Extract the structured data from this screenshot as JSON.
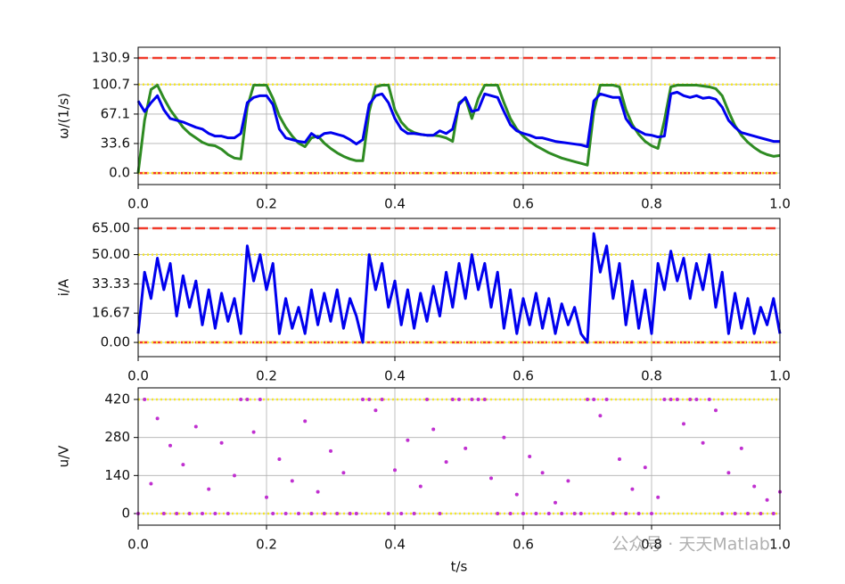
{
  "chart_data": [
    {
      "type": "line",
      "ylabel": "ω/(1/s)",
      "xlim": [
        0,
        1
      ],
      "xticks": [
        {
          "value": 0,
          "label": "0.0"
        },
        0.2,
        0.4,
        0.6,
        0.8,
        {
          "value": 1,
          "label": "1.0"
        }
      ],
      "ylim": [
        -13.1,
        143.1
      ],
      "yticks": [
        {
          "value": 0,
          "label": "0.0"
        },
        33.6,
        67.1,
        100.7,
        130.9
      ],
      "grid": true,
      "hlines": [
        {
          "value": 130.9,
          "color": "#f03a2a",
          "style": "dashed"
        },
        {
          "value": 100.7,
          "color": "#f5e72a",
          "style": "dotted"
        },
        {
          "value": 0,
          "color": "#f03a2a",
          "style": "dashed"
        },
        {
          "value": 0,
          "color": "#f5e72a",
          "style": "dotted"
        }
      ],
      "x": [
        0,
        0.01,
        0.02,
        0.03,
        0.04,
        0.05,
        0.06,
        0.07,
        0.08,
        0.09,
        0.1,
        0.11,
        0.12,
        0.13,
        0.14,
        0.15,
        0.16,
        0.17,
        0.18,
        0.19,
        0.2,
        0.21,
        0.22,
        0.23,
        0.24,
        0.25,
        0.26,
        0.27,
        0.28,
        0.29,
        0.3,
        0.31,
        0.32,
        0.33,
        0.34,
        0.35,
        0.36,
        0.37,
        0.38,
        0.39,
        0.4,
        0.41,
        0.42,
        0.43,
        0.44,
        0.45,
        0.46,
        0.47,
        0.48,
        0.49,
        0.5,
        0.51,
        0.52,
        0.53,
        0.54,
        0.55,
        0.56,
        0.57,
        0.58,
        0.59,
        0.6,
        0.61,
        0.62,
        0.63,
        0.64,
        0.65,
        0.66,
        0.67,
        0.68,
        0.69,
        0.7,
        0.71,
        0.72,
        0.73,
        0.74,
        0.75,
        0.76,
        0.77,
        0.78,
        0.79,
        0.8,
        0.81,
        0.82,
        0.83,
        0.84,
        0.85,
        0.86,
        0.87,
        0.88,
        0.89,
        0.9,
        0.91,
        0.92,
        0.93,
        0.94,
        0.95,
        0.96,
        0.97,
        0.98,
        0.99,
        1
      ],
      "series": [
        {
          "color": "#2e8b22",
          "values": [
            0,
            60,
            95,
            100,
            85,
            72,
            62,
            52,
            45,
            40,
            35,
            32,
            31,
            27,
            21,
            17,
            16,
            75,
            100,
            100,
            100,
            85,
            65,
            52,
            42,
            34,
            30,
            40,
            42,
            34,
            28,
            23,
            19,
            16,
            14,
            14,
            70,
            98,
            100,
            100,
            72,
            58,
            50,
            46,
            44,
            43,
            43,
            42,
            40,
            36,
            80,
            85,
            62,
            85,
            100,
            100,
            100,
            80,
            62,
            50,
            42,
            36,
            31,
            27,
            23,
            20,
            17,
            15,
            13,
            11,
            9,
            70,
            100,
            100,
            100,
            98,
            72,
            55,
            44,
            36,
            31,
            28,
            60,
            98,
            100,
            100,
            100,
            100,
            99,
            98,
            96,
            88,
            70,
            54,
            43,
            35,
            29,
            24,
            21,
            19,
            20
          ]
        },
        {
          "color": "#0000ee",
          "values": [
            82,
            70,
            80,
            88,
            72,
            62,
            60,
            58,
            55,
            52,
            50,
            45,
            42,
            42,
            40,
            40,
            45,
            80,
            86,
            88,
            88,
            78,
            50,
            40,
            38,
            36,
            35,
            45,
            40,
            45,
            46,
            44,
            42,
            38,
            33,
            38,
            78,
            88,
            90,
            80,
            62,
            50,
            45,
            45,
            44,
            43,
            43,
            48,
            45,
            50,
            78,
            86,
            70,
            72,
            90,
            88,
            86,
            70,
            55,
            48,
            45,
            43,
            40,
            40,
            38,
            36,
            35,
            34,
            33,
            32,
            30,
            82,
            90,
            88,
            86,
            86,
            62,
            52,
            48,
            44,
            43,
            41,
            42,
            90,
            92,
            88,
            86,
            88,
            85,
            86,
            84,
            75,
            60,
            52,
            46,
            44,
            42,
            40,
            38,
            36,
            36
          ]
        }
      ]
    },
    {
      "type": "line",
      "ylabel": "i/A",
      "xlim": [
        0,
        1
      ],
      "xticks": [
        {
          "value": 0,
          "label": "0.0"
        },
        0.2,
        0.4,
        0.6,
        0.8,
        {
          "value": 1,
          "label": "1.0"
        }
      ],
      "ylim": [
        -8.1,
        70.6
      ],
      "yticks": [
        {
          "value": 0,
          "label": "0.00"
        },
        16.67,
        33.33,
        {
          "value": 50,
          "label": "50.00"
        },
        {
          "value": 65,
          "label": "65.00"
        }
      ],
      "grid": true,
      "hlines": [
        {
          "value": 65,
          "color": "#f03a2a",
          "style": "dashed"
        },
        {
          "value": 50,
          "color": "#f5e72a",
          "style": "dotted"
        },
        {
          "value": 0,
          "color": "#f03a2a",
          "style": "dashed"
        },
        {
          "value": 0,
          "color": "#f5e72a",
          "style": "dotted"
        }
      ],
      "x": [
        0,
        0.01,
        0.02,
        0.03,
        0.04,
        0.05,
        0.06,
        0.07,
        0.08,
        0.09,
        0.1,
        0.11,
        0.12,
        0.13,
        0.14,
        0.15,
        0.16,
        0.17,
        0.18,
        0.19,
        0.2,
        0.21,
        0.22,
        0.23,
        0.24,
        0.25,
        0.26,
        0.27,
        0.28,
        0.29,
        0.3,
        0.31,
        0.32,
        0.33,
        0.34,
        0.35,
        0.36,
        0.37,
        0.38,
        0.39,
        0.4,
        0.41,
        0.42,
        0.43,
        0.44,
        0.45,
        0.46,
        0.47,
        0.48,
        0.49,
        0.5,
        0.51,
        0.52,
        0.53,
        0.54,
        0.55,
        0.56,
        0.57,
        0.58,
        0.59,
        0.6,
        0.61,
        0.62,
        0.63,
        0.64,
        0.65,
        0.66,
        0.67,
        0.68,
        0.69,
        0.7,
        0.71,
        0.72,
        0.73,
        0.74,
        0.75,
        0.76,
        0.77,
        0.78,
        0.79,
        0.8,
        0.81,
        0.82,
        0.83,
        0.84,
        0.85,
        0.86,
        0.87,
        0.88,
        0.89,
        0.9,
        0.91,
        0.92,
        0.93,
        0.94,
        0.95,
        0.96,
        0.97,
        0.98,
        0.99,
        1
      ],
      "series": [
        {
          "color": "#0000ee",
          "values": [
            5,
            40,
            25,
            48,
            30,
            45,
            15,
            38,
            20,
            35,
            10,
            30,
            8,
            28,
            12,
            25,
            5,
            55,
            35,
            50,
            30,
            45,
            5,
            25,
            8,
            20,
            5,
            30,
            10,
            28,
            12,
            30,
            8,
            25,
            15,
            0,
            50,
            30,
            45,
            20,
            35,
            10,
            30,
            8,
            28,
            12,
            32,
            15,
            40,
            20,
            45,
            25,
            50,
            30,
            45,
            20,
            40,
            8,
            30,
            5,
            25,
            10,
            28,
            8,
            25,
            5,
            22,
            10,
            20,
            5,
            0,
            62,
            40,
            55,
            25,
            45,
            10,
            35,
            8,
            30,
            5,
            45,
            30,
            52,
            35,
            48,
            25,
            45,
            30,
            50,
            20,
            40,
            5,
            28,
            8,
            25,
            5,
            20,
            10,
            25,
            5
          ]
        }
      ]
    },
    {
      "type": "scatter",
      "ylabel": "u/V",
      "xlabel": "t/s",
      "xlim": [
        0,
        1
      ],
      "xticks": [
        {
          "value": 0,
          "label": "0.0"
        },
        0.2,
        0.4,
        0.6,
        0.8,
        {
          "value": 1,
          "label": "1.0"
        }
      ],
      "ylim": [
        -42.7,
        462.7
      ],
      "yticks": [
        0,
        140,
        280,
        420
      ],
      "grid": true,
      "hlines": [
        {
          "value": 420,
          "color": "#f5e72a",
          "style": "dotted"
        },
        {
          "value": 0,
          "color": "#f5e72a",
          "style": "dotted"
        }
      ],
      "x": [
        0,
        0.01,
        0.02,
        0.03,
        0.04,
        0.05,
        0.06,
        0.07,
        0.08,
        0.09,
        0.1,
        0.11,
        0.12,
        0.13,
        0.14,
        0.15,
        0.16,
        0.17,
        0.18,
        0.19,
        0.2,
        0.21,
        0.22,
        0.23,
        0.24,
        0.25,
        0.26,
        0.27,
        0.28,
        0.29,
        0.3,
        0.31,
        0.32,
        0.33,
        0.34,
        0.35,
        0.36,
        0.37,
        0.38,
        0.39,
        0.4,
        0.41,
        0.42,
        0.43,
        0.44,
        0.45,
        0.46,
        0.47,
        0.48,
        0.49,
        0.5,
        0.51,
        0.52,
        0.53,
        0.54,
        0.55,
        0.56,
        0.57,
        0.58,
        0.59,
        0.6,
        0.61,
        0.62,
        0.63,
        0.64,
        0.65,
        0.66,
        0.67,
        0.68,
        0.69,
        0.7,
        0.71,
        0.72,
        0.73,
        0.74,
        0.75,
        0.76,
        0.77,
        0.78,
        0.79,
        0.8,
        0.81,
        0.82,
        0.83,
        0.84,
        0.85,
        0.86,
        0.87,
        0.88,
        0.89,
        0.9,
        0.91,
        0.92,
        0.93,
        0.94,
        0.95,
        0.96,
        0.97,
        0.98,
        0.99,
        1
      ],
      "series": [
        {
          "color": "#c030d0",
          "values": [
            0,
            420,
            110,
            350,
            0,
            250,
            0,
            180,
            0,
            320,
            0,
            90,
            0,
            260,
            0,
            140,
            420,
            420,
            300,
            420,
            60,
            0,
            200,
            0,
            120,
            0,
            340,
            0,
            80,
            0,
            230,
            0,
            150,
            0,
            0,
            420,
            420,
            380,
            420,
            0,
            160,
            0,
            270,
            0,
            100,
            420,
            310,
            0,
            190,
            420,
            420,
            240,
            420,
            420,
            420,
            130,
            0,
            280,
            0,
            70,
            0,
            210,
            0,
            150,
            0,
            40,
            0,
            120,
            0,
            0,
            420,
            420,
            360,
            420,
            0,
            200,
            0,
            90,
            0,
            170,
            0,
            60,
            420,
            420,
            420,
            330,
            420,
            420,
            260,
            420,
            380,
            0,
            150,
            0,
            240,
            0,
            100,
            0,
            50,
            0,
            80
          ]
        }
      ]
    }
  ],
  "watermark": "公众号 · 天天Matlab"
}
